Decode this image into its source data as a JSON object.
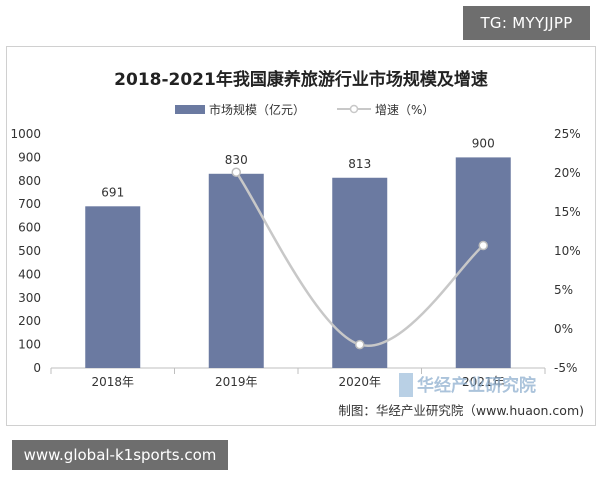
{
  "badges": {
    "top_right": "TG: MYYJJPP",
    "bottom_left": "www.global-k1sports.com"
  },
  "chart_data": {
    "type": "bar",
    "title": "2018-2021年我国康养旅游行业市场规模及增速",
    "categories": [
      "2018年",
      "2019年",
      "2020年",
      "2021年"
    ],
    "series": [
      {
        "name": "市场规模（亿元）",
        "type": "bar",
        "axis": "left",
        "values": [
          691,
          830,
          813,
          900
        ],
        "color": "#6b7aa1"
      },
      {
        "name": "增速（%）",
        "type": "line",
        "axis": "right",
        "values": [
          null,
          20.1,
          -2.0,
          10.7
        ],
        "color": "#c8c8c8"
      }
    ],
    "data_labels": [
      "691",
      "830",
      "813",
      "900"
    ],
    "y_left": {
      "range": [
        0,
        1000
      ],
      "ticks": [
        "0",
        "100",
        "200",
        "300",
        "400",
        "500",
        "600",
        "700",
        "800",
        "900",
        "1000"
      ]
    },
    "y_right": {
      "range": [
        -5,
        25
      ],
      "ticks": [
        "-5%",
        "0%",
        "5%",
        "10%",
        "15%",
        "20%",
        "25%"
      ]
    },
    "legend_position": "top",
    "grid": false,
    "source": "制图：华经产业研究院（www.huaon.com)",
    "watermark": "华经产业研究院"
  }
}
